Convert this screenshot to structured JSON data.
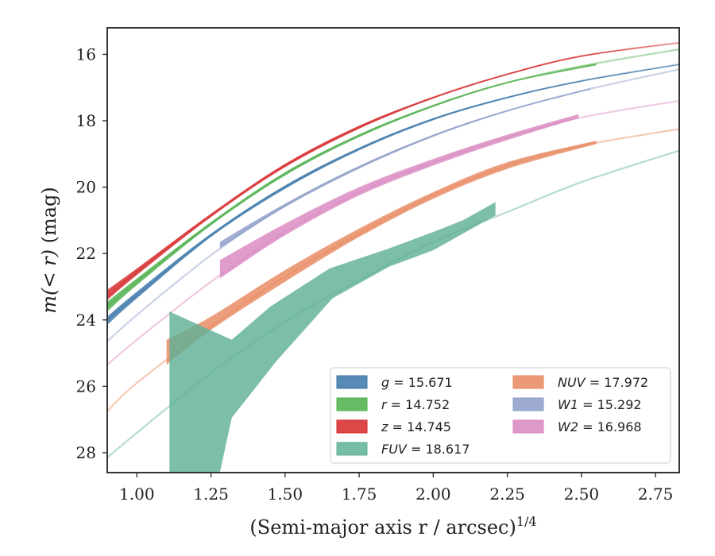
{
  "chart_data": {
    "type": "line",
    "xlabel": "(Semi-major axis r / arcsec)",
    "xlabel_power": "1/4",
    "ylabel_prefix": "m(< r)",
    "ylabel_unit": " (mag)",
    "xlim": [
      0.9,
      2.83
    ],
    "ylim": [
      28.6,
      15.2
    ],
    "y_inverted": true,
    "x_ticks": [
      1.0,
      1.25,
      1.5,
      1.75,
      2.0,
      2.25,
      2.5,
      2.75
    ],
    "x_tick_labels": [
      "1.00",
      "1.25",
      "1.50",
      "1.75",
      "2.00",
      "2.25",
      "2.50",
      "2.75"
    ],
    "y_ticks": [
      16,
      18,
      20,
      22,
      24,
      26,
      28
    ],
    "y_tick_labels": [
      "16",
      "18",
      "20",
      "22",
      "24",
      "26",
      "28"
    ],
    "grid": false,
    "legend_position": "bottom-right",
    "legend_columns": 2,
    "series": [
      {
        "key": "z",
        "legend": "z = 14.745",
        "color": "#d62728",
        "model": [
          [
            0.9,
            23.3
          ],
          [
            1.0,
            22.55
          ],
          [
            1.25,
            20.85
          ],
          [
            1.5,
            19.35
          ],
          [
            1.75,
            18.2
          ],
          [
            2.0,
            17.3
          ],
          [
            2.25,
            16.6
          ],
          [
            2.5,
            16.05
          ],
          [
            2.83,
            15.65
          ]
        ],
        "band_upper": [
          [
            0.9,
            23.1
          ],
          [
            1.0,
            22.45
          ],
          [
            1.25,
            20.8
          ],
          [
            1.5,
            19.3
          ],
          [
            1.75,
            18.15
          ],
          [
            2.0,
            17.28
          ],
          [
            2.25,
            16.58
          ],
          [
            2.5,
            16.04
          ],
          [
            2.83,
            15.65
          ]
        ],
        "band_lower": [
          [
            0.9,
            23.4
          ],
          [
            1.0,
            22.65
          ],
          [
            1.25,
            20.9
          ],
          [
            1.5,
            19.4
          ],
          [
            1.75,
            18.24
          ],
          [
            2.0,
            17.33
          ],
          [
            2.25,
            16.62
          ],
          [
            2.5,
            16.07
          ],
          [
            2.83,
            15.65
          ]
        ]
      },
      {
        "key": "r",
        "legend": "r = 14.752",
        "color": "#4daf4a",
        "model": [
          [
            0.9,
            23.6
          ],
          [
            1.0,
            22.85
          ],
          [
            1.25,
            21.1
          ],
          [
            1.5,
            19.6
          ],
          [
            1.75,
            18.45
          ],
          [
            2.0,
            17.55
          ],
          [
            2.25,
            16.85
          ],
          [
            2.5,
            16.35
          ],
          [
            2.83,
            15.85
          ]
        ],
        "band_upper": [
          [
            0.9,
            23.45
          ],
          [
            1.0,
            22.75
          ],
          [
            1.25,
            21.05
          ],
          [
            1.5,
            19.55
          ],
          [
            1.75,
            18.41
          ],
          [
            2.0,
            17.52
          ],
          [
            2.25,
            16.83
          ],
          [
            2.55,
            16.27
          ]
        ],
        "band_lower": [
          [
            0.9,
            23.75
          ],
          [
            1.0,
            22.95
          ],
          [
            1.25,
            21.15
          ],
          [
            1.5,
            19.65
          ],
          [
            1.75,
            18.49
          ],
          [
            2.0,
            17.58
          ],
          [
            2.25,
            16.87
          ],
          [
            2.55,
            16.33
          ]
        ]
      },
      {
        "key": "g",
        "legend": "g = 15.671",
        "color": "#3a76a8",
        "model": [
          [
            0.9,
            24.0
          ],
          [
            1.0,
            23.25
          ],
          [
            1.25,
            21.45
          ],
          [
            1.5,
            20.0
          ],
          [
            1.75,
            18.85
          ],
          [
            2.0,
            17.95
          ],
          [
            2.25,
            17.3
          ],
          [
            2.5,
            16.8
          ],
          [
            2.83,
            16.3
          ]
        ],
        "band_upper": [
          [
            0.9,
            23.9
          ],
          [
            1.0,
            23.15
          ],
          [
            1.25,
            21.4
          ],
          [
            1.5,
            19.95
          ],
          [
            1.75,
            18.81
          ],
          [
            2.0,
            17.92
          ],
          [
            2.25,
            17.28
          ],
          [
            2.5,
            16.79
          ],
          [
            2.83,
            16.3
          ]
        ],
        "band_lower": [
          [
            0.9,
            24.15
          ],
          [
            1.0,
            23.35
          ],
          [
            1.25,
            21.5
          ],
          [
            1.5,
            20.05
          ],
          [
            1.75,
            18.89
          ],
          [
            2.0,
            17.98
          ],
          [
            2.25,
            17.32
          ],
          [
            2.5,
            16.82
          ],
          [
            2.83,
            16.32
          ]
        ]
      },
      {
        "key": "W1",
        "legend": "W1 = 15.292",
        "color": "#8c9cc8",
        "model": [
          [
            0.9,
            24.65
          ],
          [
            1.0,
            23.85
          ],
          [
            1.25,
            22.05
          ],
          [
            1.5,
            20.55
          ],
          [
            1.75,
            19.4
          ],
          [
            2.0,
            18.45
          ],
          [
            2.25,
            17.7
          ],
          [
            2.5,
            17.1
          ],
          [
            2.83,
            16.45
          ]
        ],
        "band_upper": [
          [
            1.28,
            21.65
          ],
          [
            1.5,
            20.5
          ],
          [
            1.75,
            19.36
          ],
          [
            2.0,
            18.42
          ],
          [
            2.25,
            17.68
          ],
          [
            2.53,
            17.02
          ]
        ],
        "band_lower": [
          [
            1.28,
            21.85
          ],
          [
            1.5,
            20.6
          ],
          [
            1.75,
            19.44
          ],
          [
            2.0,
            18.48
          ],
          [
            2.25,
            17.72
          ],
          [
            2.53,
            17.06
          ]
        ]
      },
      {
        "key": "W2",
        "legend": "W2 = 16.968",
        "color": "#d987bf",
        "model": [
          [
            0.9,
            25.35
          ],
          [
            1.0,
            24.6
          ],
          [
            1.25,
            22.85
          ],
          [
            1.5,
            21.35
          ],
          [
            1.75,
            20.15
          ],
          [
            2.0,
            19.25
          ],
          [
            2.25,
            18.5
          ],
          [
            2.5,
            17.9
          ],
          [
            2.83,
            17.4
          ]
        ],
        "band_upper": [
          [
            1.28,
            22.2
          ],
          [
            1.5,
            21.1
          ],
          [
            1.75,
            20.0
          ],
          [
            2.0,
            19.15
          ],
          [
            2.25,
            18.42
          ],
          [
            2.49,
            17.8
          ]
        ],
        "band_lower": [
          [
            1.28,
            22.75
          ],
          [
            1.5,
            21.45
          ],
          [
            1.75,
            20.25
          ],
          [
            2.0,
            19.35
          ],
          [
            2.25,
            18.58
          ],
          [
            2.49,
            17.92
          ]
        ]
      },
      {
        "key": "NUV",
        "legend": "NUV = 17.972",
        "color": "#e8875f",
        "model": [
          [
            0.9,
            26.75
          ],
          [
            1.0,
            25.9
          ],
          [
            1.25,
            24.2
          ],
          [
            1.5,
            22.7
          ],
          [
            1.75,
            21.4
          ],
          [
            2.0,
            20.25
          ],
          [
            2.25,
            19.35
          ],
          [
            2.5,
            18.75
          ],
          [
            2.83,
            18.25
          ]
        ],
        "band_upper": [
          [
            1.1,
            24.6
          ],
          [
            1.25,
            23.9
          ],
          [
            1.5,
            22.5
          ],
          [
            1.75,
            21.25
          ],
          [
            2.0,
            20.15
          ],
          [
            2.25,
            19.25
          ],
          [
            2.55,
            18.6
          ]
        ],
        "band_lower": [
          [
            1.1,
            25.35
          ],
          [
            1.25,
            24.3
          ],
          [
            1.5,
            22.85
          ],
          [
            1.75,
            21.5
          ],
          [
            2.0,
            20.35
          ],
          [
            2.25,
            19.45
          ],
          [
            2.55,
            18.7
          ]
        ]
      },
      {
        "key": "FUV",
        "legend": "FUV = 18.617",
        "color": "#5fb096",
        "model": [
          [
            0.9,
            28.15
          ],
          [
            1.0,
            27.4
          ],
          [
            1.25,
            25.6
          ],
          [
            1.5,
            24.05
          ],
          [
            1.75,
            22.8
          ],
          [
            2.0,
            21.65
          ],
          [
            2.25,
            20.75
          ],
          [
            2.5,
            19.85
          ],
          [
            2.83,
            18.9
          ]
        ],
        "band_upper": [
          [
            1.11,
            23.75
          ],
          [
            1.32,
            24.6
          ],
          [
            1.45,
            23.6
          ],
          [
            1.65,
            22.45
          ],
          [
            1.85,
            21.85
          ],
          [
            2.0,
            21.35
          ],
          [
            2.1,
            21.0
          ],
          [
            2.21,
            20.45
          ]
        ],
        "band_lower": [
          [
            1.11,
            28.6
          ],
          [
            1.28,
            28.6
          ],
          [
            1.32,
            26.95
          ],
          [
            1.47,
            25.25
          ],
          [
            1.66,
            23.35
          ],
          [
            1.85,
            22.4
          ],
          [
            2.0,
            21.9
          ],
          [
            2.1,
            21.4
          ],
          [
            2.21,
            20.85
          ]
        ]
      }
    ],
    "legend_entries": [
      {
        "text": "g = 15.671",
        "color": "#3a76a8",
        "col": 0,
        "row": 0
      },
      {
        "text": "r = 14.752",
        "color": "#4daf4a",
        "col": 0,
        "row": 1
      },
      {
        "text": "z = 14.745",
        "color": "#d62728",
        "col": 0,
        "row": 2
      },
      {
        "text": "FUV = 18.617",
        "color": "#5fb096",
        "col": 0,
        "row": 3
      },
      {
        "text": "NUV = 17.972",
        "color": "#e8875f",
        "col": 1,
        "row": 0
      },
      {
        "text": "W1 = 15.292",
        "color": "#8c9cc8",
        "col": 1,
        "row": 1
      },
      {
        "text": "W2 = 16.968",
        "color": "#d987bf",
        "col": 1,
        "row": 2
      }
    ]
  }
}
